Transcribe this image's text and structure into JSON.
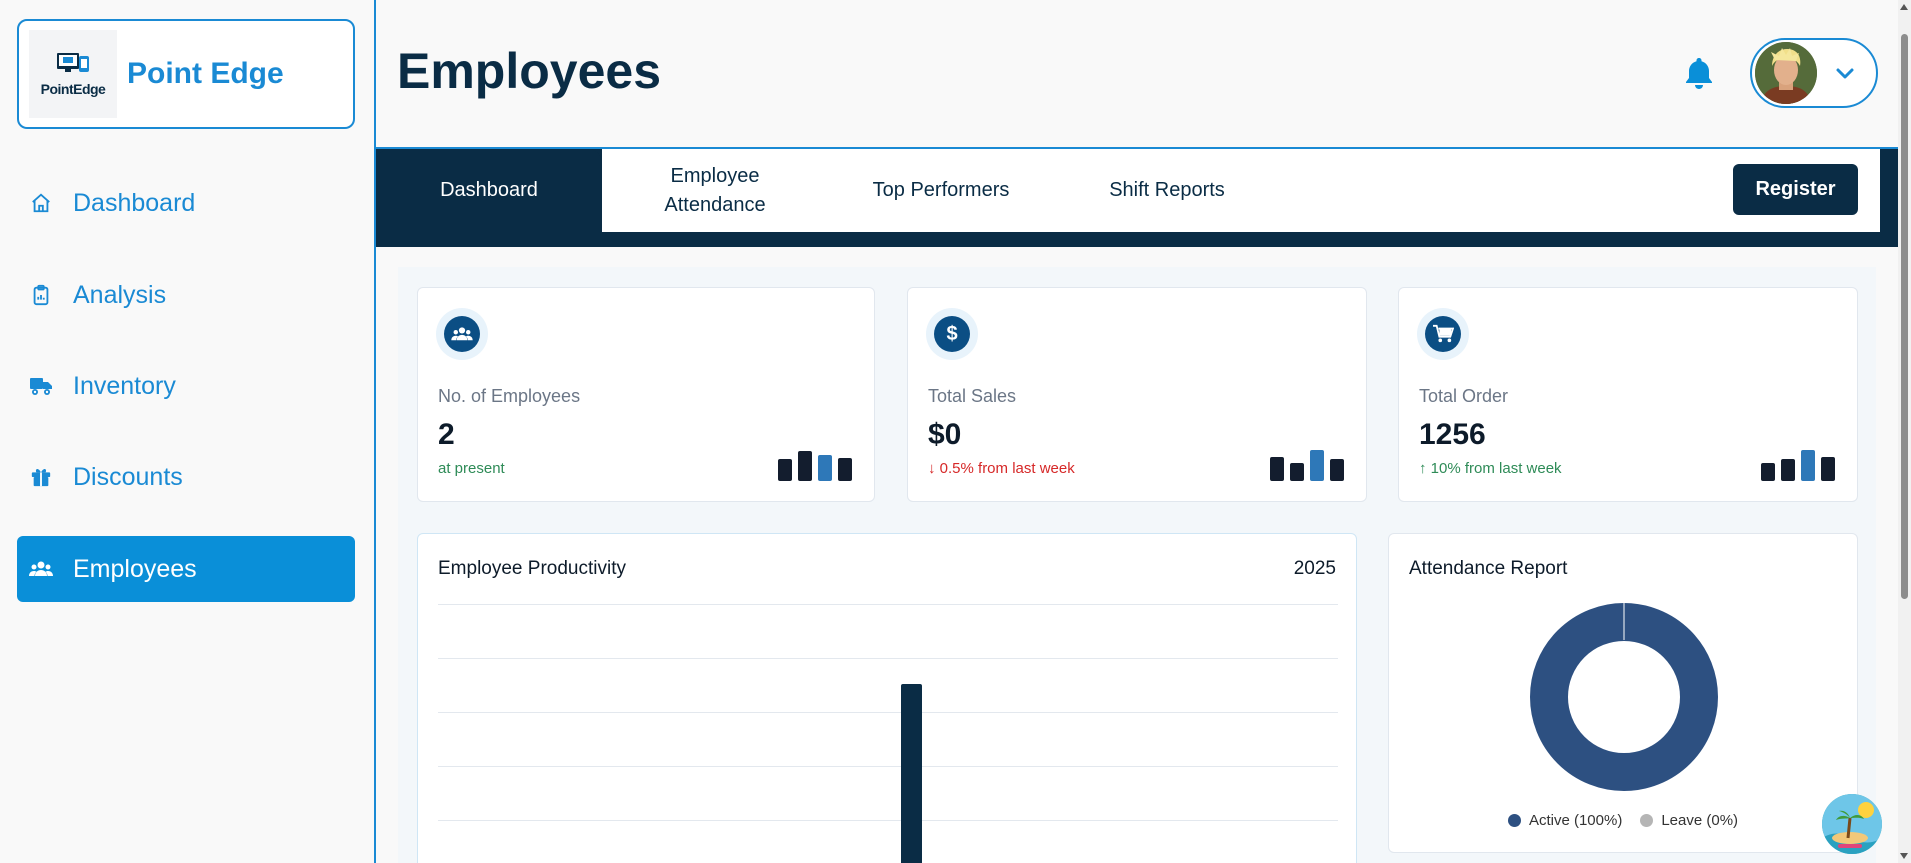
{
  "brand": {
    "name": "Point Edge",
    "logo_text": "PointEdge"
  },
  "sidebar": {
    "items": [
      {
        "label": "Dashboard",
        "icon": "home-icon"
      },
      {
        "label": "Analysis",
        "icon": "clipboard-icon"
      },
      {
        "label": "Inventory",
        "icon": "truck-icon"
      },
      {
        "label": "Discounts",
        "icon": "gift-icon"
      },
      {
        "label": "Employees",
        "icon": "users-icon",
        "active": true
      }
    ]
  },
  "header": {
    "title": "Employees",
    "bell_icon": "bell-icon",
    "profile_chevron": "chevron-down-icon"
  },
  "tabs": [
    {
      "label": "Dashboard",
      "active": true
    },
    {
      "label": "Employee Attendance"
    },
    {
      "label": "Top Performers"
    },
    {
      "label": "Shift Reports"
    }
  ],
  "register_label": "Register",
  "stats": [
    {
      "label": "No. of Employees",
      "value": "2",
      "sub": "at present",
      "icon": "users-icon"
    },
    {
      "label": "Total Sales",
      "value": "$0",
      "sub": "↓ 0.5% from last week",
      "icon": "dollar-icon"
    },
    {
      "label": "Total Order",
      "value": "1256",
      "sub": "↑ 10% from last week",
      "icon": "cart-icon"
    }
  ],
  "productivity": {
    "title": "Employee Productivity",
    "year": "2025"
  },
  "attendance": {
    "title": "Attendance Report",
    "legend": [
      {
        "label": "Active (100%)",
        "color": "#2d5081"
      },
      {
        "label": "Leave (0%)",
        "color": "#b5b5b5"
      }
    ]
  },
  "colors": {
    "accent": "#1a8ad4",
    "navy": "#0a2c45",
    "active_nav": "#0a8fd8"
  }
}
